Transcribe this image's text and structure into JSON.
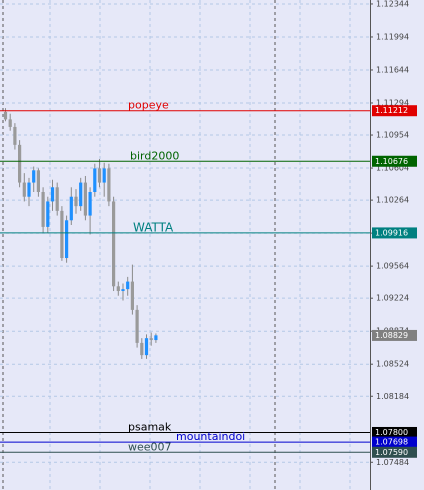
{
  "chart_data": {
    "type": "candlestick",
    "ylim": [
      1.0719,
      1.12386
    ],
    "yticks": [
      1.12344,
      1.11994,
      1.11644,
      1.11294,
      1.10954,
      1.10604,
      1.10264,
      1.09914,
      1.09564,
      1.09224,
      1.08874,
      1.08524,
      1.08184,
      1.07484
    ],
    "grid": true,
    "up_color": "#1e90ff",
    "down_color": "#9a9a9a",
    "candles": {
      "open": [
        1.112,
        1.1112,
        1.1104,
        1.1085,
        1.1045,
        1.103,
        1.1045,
        1.1058,
        1.1035,
        1.0998,
        1.1025,
        1.104,
        1.1015,
        1.0965,
        1.1005,
        1.103,
        1.102,
        1.1045,
        1.101,
        1.1035,
        1.106,
        1.1045,
        1.106,
        1.1025,
        1.0935,
        1.093,
        1.0932,
        1.094,
        1.091,
        1.0875,
        1.0862,
        1.088,
        1.0878
      ],
      "high": [
        1.1124,
        1.1118,
        1.1108,
        1.109,
        1.1055,
        1.105,
        1.1062,
        1.106,
        1.104,
        1.103,
        1.1048,
        1.1045,
        1.102,
        1.101,
        1.104,
        1.1038,
        1.105,
        1.1052,
        1.104,
        1.1065,
        1.107,
        1.1066,
        1.1065,
        1.103,
        1.094,
        1.0938,
        1.0945,
        1.0958,
        1.0915,
        1.088,
        1.0884,
        1.0886,
        1.0885
      ],
      "low": [
        1.111,
        1.11,
        1.108,
        1.104,
        1.1025,
        1.102,
        1.1035,
        1.103,
        1.0992,
        1.0992,
        1.1015,
        1.101,
        1.0962,
        1.096,
        1.1,
        1.1012,
        1.1015,
        1.1005,
        1.099,
        1.103,
        1.104,
        1.103,
        1.102,
        1.093,
        1.0925,
        1.092,
        1.0925,
        1.0905,
        1.087,
        1.0858,
        1.0858,
        1.0872,
        1.0875
      ],
      "close": [
        1.1112,
        1.1104,
        1.1085,
        1.1045,
        1.103,
        1.1045,
        1.1058,
        1.1035,
        1.0998,
        1.1025,
        1.104,
        1.1015,
        1.0965,
        1.1005,
        1.103,
        1.102,
        1.1045,
        1.101,
        1.1035,
        1.106,
        1.1045,
        1.106,
        1.1025,
        1.0935,
        1.093,
        1.0932,
        1.094,
        1.091,
        1.0875,
        1.0862,
        1.088,
        1.0878,
        1.0883
      ]
    },
    "levels": [
      {
        "name": "popeye",
        "value": 1.11212,
        "label": "1.11212",
        "color": "#e00000"
      },
      {
        "name": "bird2000",
        "value": 1.10676,
        "label": "1.10676",
        "color": "#006400"
      },
      {
        "name": "WATTA",
        "value": 1.09916,
        "label": "1.09916",
        "color": "#008080"
      },
      {
        "name": "psamak",
        "value": 1.078,
        "label": "1.07800",
        "color": "#000000"
      },
      {
        "name": "mountaindoi",
        "value": 1.07698,
        "label": "1.07698",
        "color": "#0000cd"
      },
      {
        "name": "wee007",
        "value": 1.0759,
        "label": "1.07590",
        "color": "#2f4f4f"
      }
    ],
    "current_price": {
      "value": 1.08829,
      "label": "1.08829",
      "color": "#808080"
    }
  }
}
